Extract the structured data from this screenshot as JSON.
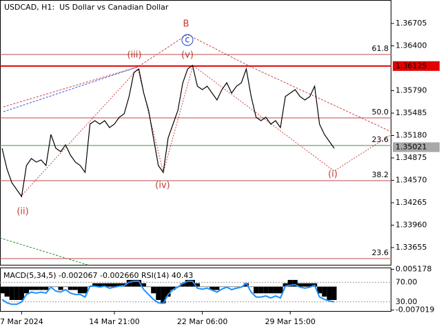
{
  "chart_data": {
    "type": "line",
    "title": "USDCAD, H1:  US Dollar vs Canadian Dollar",
    "color": "#000000",
    "categories": [
      null,
      null,
      null,
      null,
      "7 Mar 2024",
      null,
      null,
      null,
      null,
      null,
      null,
      null,
      null,
      null,
      null,
      null,
      null,
      null,
      null,
      null,
      null,
      null,
      null,
      "14 Mar 21:00",
      null,
      null,
      null,
      null,
      null,
      null,
      null,
      null,
      null,
      null,
      null,
      null,
      null,
      null,
      null,
      null,
      null,
      "22 Mar 06:00",
      null,
      null,
      null,
      null,
      null,
      null,
      null,
      null,
      null,
      null,
      null,
      null,
      null,
      null,
      null,
      null,
      null,
      "29 Mar 15:00",
      null,
      null,
      null,
      null,
      null,
      null,
      null,
      null,
      null
    ],
    "values": [
      1.35006,
      1.34725,
      1.34537,
      1.34443,
      1.3435,
      1.34772,
      1.34866,
      1.34819,
      1.34847,
      1.34772,
      1.35194,
      1.35006,
      1.3496,
      1.35053,
      1.34913,
      1.34819,
      1.34772,
      1.34678,
      1.35335,
      1.35382,
      1.35335,
      1.35382,
      1.35288,
      1.35335,
      1.35429,
      1.35476,
      1.3571,
      1.36039,
      1.36086,
      1.35757,
      1.35523,
      1.35147,
      1.34772,
      1.34678,
      1.35147,
      1.35335,
      1.35523,
      1.35898,
      1.36086,
      1.36133,
      1.35851,
      1.35804,
      1.35851,
      1.35757,
      1.35663,
      1.35804,
      1.35898,
      1.35757,
      1.35851,
      1.35898,
      1.36086,
      1.3571,
      1.35429,
      1.35382,
      1.35429,
      1.35335,
      1.35382,
      1.35288,
      1.3571,
      1.35757,
      1.35804,
      1.3571,
      1.35663,
      1.3571,
      1.35851,
      1.35335,
      1.35194,
      1.351,
      1.35006
    ],
    "ylim": [
      1.33411,
      1.37024
    ],
    "yticks": [
      1.36705,
      {
        "value": 1.364,
        "label": "1.36400"
      },
      {
        "value": 1.3579,
        "label": "1.35790"
      },
      1.35485,
      {
        "value": 1.3518,
        "label": "1.35180"
      },
      1.34875,
      {
        "value": 1.3457,
        "label": "1.34570"
      },
      1.34265,
      {
        "value": 1.3396,
        "label": "1.33960"
      },
      1.33655
    ],
    "price_markers": [
      {
        "value": 1.36125,
        "label": "1.36125",
        "color": "#e00000"
      },
      {
        "value": 1.35021,
        "label": "1.35021",
        "color": "#a8a8a8"
      }
    ],
    "levels": [
      {
        "label": "61.8",
        "value": 1.36283,
        "color": "#b84a4a"
      },
      {
        "label": "50.0",
        "value": 1.35419,
        "color": "#b84a4a"
      },
      {
        "label": "23.6",
        "value": 1.35044,
        "color": "#4a8a4a"
      },
      {
        "label": "38.2",
        "value": 1.34565,
        "color": "#b84a4a"
      },
      {
        "label": "23.6",
        "value": 1.33505,
        "color": "#b84a4a"
      }
    ],
    "waves": [
      "B",
      "c",
      "(iii)",
      "(v)",
      "(iv)",
      "(ii)",
      "(i)"
    ],
    "indicator": {
      "title": "MACD(5,34,5) -0.002067 -0.002660 RSI(14) 40.43",
      "macd_ylim": [
        -0.0075,
        0.0057
      ],
      "macd_yticks": [
        {
          "value": 0.005178,
          "label": "0.005178"
        },
        {
          "value": -0.007019,
          "label": "-0.007019"
        }
      ],
      "rsi_ylim": [
        10,
        100
      ],
      "rsi_yticks": [
        {
          "value": 70,
          "label": "70.00"
        },
        {
          "value": 30,
          "label": "30.00"
        }
      ],
      "histogram": [
        -0.002,
        -0.003,
        -0.004,
        -0.004,
        -0.004,
        -0.002,
        -0.001,
        -0.001,
        -0.001,
        -0.001,
        0,
        0,
        -0.001,
        0,
        -0.001,
        -0.001,
        -0.002,
        -0.002,
        0,
        0.001,
        0.001,
        0.001,
        0.001,
        0.001,
        0.001,
        0.001,
        0.002,
        0.002,
        0.002,
        0.001,
        0,
        -0.002,
        -0.004,
        -0.005,
        -0.003,
        -0.001,
        0,
        0.001,
        0.002,
        0.002,
        0.001,
        0,
        0,
        -0.001,
        -0.001,
        0,
        0,
        0,
        0,
        0,
        0.001,
        0,
        -0.002,
        -0.002,
        -0.002,
        -0.002,
        -0.002,
        -0.002,
        0.001,
        0.002,
        0.002,
        0.001,
        0.001,
        0.001,
        0.001,
        -0.002,
        -0.003,
        -0.004,
        -0.004
      ],
      "histogram_color": "#000000",
      "rsi": [
        35,
        28,
        25,
        25,
        30,
        45,
        50,
        48,
        50,
        48,
        60,
        52,
        50,
        55,
        48,
        45,
        45,
        40,
        62,
        62,
        60,
        62,
        58,
        60,
        62,
        63,
        70,
        72,
        72,
        55,
        45,
        35,
        28,
        27,
        45,
        55,
        60,
        68,
        72,
        72,
        58,
        56,
        58,
        54,
        50,
        56,
        60,
        55,
        58,
        60,
        68,
        50,
        40,
        40,
        42,
        38,
        42,
        38,
        62,
        64,
        65,
        60,
        58,
        60,
        64,
        40,
        35,
        32,
        30
      ],
      "rsi_color": "#1e90ff"
    }
  }
}
